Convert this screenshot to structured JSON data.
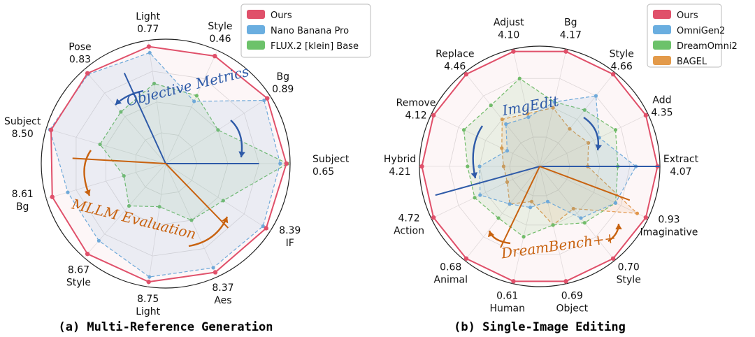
{
  "chart_data": [
    {
      "type": "radar",
      "caption": "(a) Multi-Reference Generation",
      "axes": [
        {
          "name": "Subject",
          "value": "0.65"
        },
        {
          "name": "Bg",
          "value": "0.89"
        },
        {
          "name": "Style",
          "value": "0.46"
        },
        {
          "name": "Light",
          "value": "0.77"
        },
        {
          "name": "Pose",
          "value": "0.83"
        },
        {
          "name": "Subject",
          "value": "8.50"
        },
        {
          "name": "Bg",
          "value": "8.61"
        },
        {
          "name": "Style",
          "value": "8.67"
        },
        {
          "name": "Light",
          "value": "8.75"
        },
        {
          "name": "Aes",
          "value": "8.37"
        },
        {
          "name": "IF",
          "value": "8.39"
        }
      ],
      "series": [
        {
          "name": "Ours",
          "color": "#e0506a",
          "values": [
            0.97,
            0.97,
            0.95,
            0.95,
            0.96,
            0.96,
            0.95,
            0.96,
            0.96,
            0.96,
            0.96
          ]
        },
        {
          "name": "Nano Banana Pro",
          "color": "#6aaee0",
          "values": [
            0.92,
            0.94,
            0.55,
            0.9,
            0.95,
            0.97,
            0.82,
            0.82,
            0.92,
            0.92,
            0.93
          ]
        },
        {
          "name": "FLUX.2 [klein] Base",
          "color": "#6cc26a",
          "values": [
            0.98,
            0.5,
            0.6,
            0.65,
            0.55,
            0.55,
            0.35,
            0.45,
            0.35,
            0.5,
            0.55
          ]
        }
      ],
      "annotations": {
        "objective": "Objective Metrics",
        "mllm": "MLLM Evaluation"
      }
    },
    {
      "type": "radar",
      "caption": "(b) Single-Image Editing",
      "axes": [
        {
          "name": "Extract",
          "value": "4.07"
        },
        {
          "name": "Add",
          "value": "4.35"
        },
        {
          "name": "Style",
          "value": "4.66"
        },
        {
          "name": "Bg",
          "value": "4.17"
        },
        {
          "name": "Adjust",
          "value": "4.10"
        },
        {
          "name": "Replace",
          "value": "4.46"
        },
        {
          "name": "Remove",
          "value": "4.12"
        },
        {
          "name": "Hybrid",
          "value": "4.21"
        },
        {
          "name": "Action",
          "value": "4.72"
        },
        {
          "name": "Animal",
          "value": "0.68"
        },
        {
          "name": "Human",
          "value": "0.61"
        },
        {
          "name": "Object",
          "value": "0.69"
        },
        {
          "name": "Style",
          "value": "0.70"
        },
        {
          "name": "Imaginative",
          "value": "0.93"
        }
      ],
      "series": [
        {
          "name": "Ours",
          "color": "#e0506a",
          "values": [
            0.98,
            0.98,
            0.98,
            0.98,
            0.98,
            0.98,
            0.98,
            0.98,
            0.98,
            0.98,
            0.98,
            0.98,
            0.98,
            0.98
          ]
        },
        {
          "name": "OmniGen2",
          "color": "#6aaee0",
          "values": [
            0.8,
            0.55,
            0.75,
            0.55,
            0.42,
            0.45,
            0.3,
            0.5,
            0.55,
            0.4,
            0.35,
            0.3,
            0.55,
            0.7
          ]
        },
        {
          "name": "DreamOmni2",
          "color": "#6cc26a",
          "values": [
            0.65,
            0.7,
            0.6,
            0.55,
            0.75,
            0.65,
            0.7,
            0.6,
            0.6,
            0.55,
            0.6,
            0.5,
            0.6,
            0.7
          ]
        },
        {
          "name": "BAGEL",
          "color": "#e39a4a",
          "values": [
            0.4,
            0.45,
            0.4,
            0.5,
            0.45,
            0.5,
            0.35,
            0.3,
            0.3,
            0.4,
            0.3,
            0.5,
            0.45,
            0.9
          ]
        }
      ],
      "annotations": {
        "objective": "ImgEdit",
        "mllm": "DreamBench++"
      }
    }
  ]
}
